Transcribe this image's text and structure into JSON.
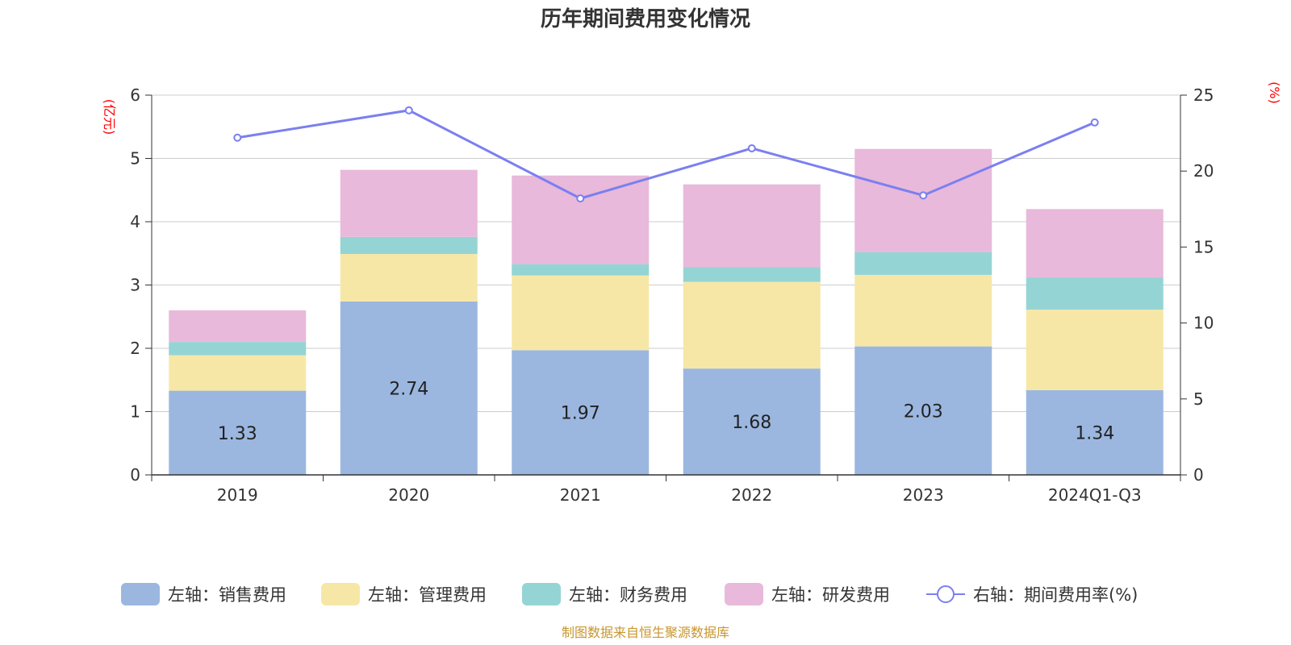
{
  "chart_data": {
    "type": "bar",
    "title": "历年期间费用变化情况",
    "categories": [
      "2019",
      "2020",
      "2021",
      "2022",
      "2023",
      "2024Q1-Q3"
    ],
    "left_axis": {
      "unit_label": "(亿元)",
      "ylim": [
        0,
        6
      ],
      "ticks": [
        "0",
        "1",
        "2",
        "3",
        "4",
        "5",
        "6"
      ]
    },
    "right_axis": {
      "unit_label": "(%)",
      "ylim": [
        0,
        25
      ],
      "ticks": [
        "0",
        "5",
        "10",
        "15",
        "20",
        "25"
      ]
    },
    "stacked": true,
    "series": [
      {
        "name": "左轴：销售费用",
        "type": "bar",
        "axis": "left",
        "color": "#9bb7e0",
        "values": [
          1.33,
          2.74,
          1.97,
          1.68,
          2.03,
          1.34
        ],
        "data_labels": [
          "1.33",
          "2.74",
          "1.97",
          "1.68",
          "2.03",
          "1.34"
        ]
      },
      {
        "name": "左轴：管理费用",
        "type": "bar",
        "axis": "left",
        "color": "#f7e7a6",
        "values": [
          0.56,
          0.75,
          1.18,
          1.37,
          1.13,
          1.27
        ]
      },
      {
        "name": "左轴：财务费用",
        "type": "bar",
        "axis": "left",
        "color": "#95d4d4",
        "values": [
          0.21,
          0.27,
          0.18,
          0.23,
          0.36,
          0.51
        ]
      },
      {
        "name": "左轴：研发费用",
        "type": "bar",
        "axis": "left",
        "color": "#e8b9da",
        "values": [
          0.5,
          1.06,
          1.4,
          1.31,
          1.63,
          1.08
        ]
      },
      {
        "name": "右轴：期间费用率(%)",
        "type": "line",
        "axis": "right",
        "color": "#7b7ff0",
        "values": [
          22.2,
          24.0,
          18.2,
          21.5,
          18.4,
          23.2
        ]
      }
    ],
    "legend_position": "bottom",
    "grid": true
  },
  "source": "制图数据来自恒生聚源数据库"
}
